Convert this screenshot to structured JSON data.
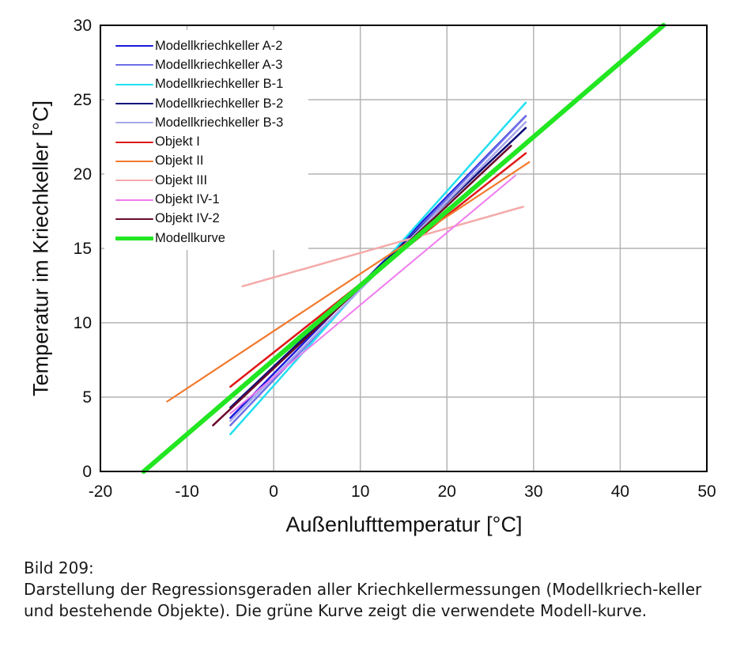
{
  "chart_data": {
    "type": "line",
    "title": "",
    "xlabel": "Außenlufttemperatur [°C]",
    "ylabel": "Temperatur im Kriechkeller [°C]",
    "xlim": [
      -20,
      50
    ],
    "ylim": [
      0,
      30
    ],
    "xticks": [
      -20,
      -10,
      0,
      10,
      20,
      30,
      40,
      50
    ],
    "yticks": [
      0,
      5,
      10,
      15,
      20,
      25,
      30
    ],
    "grid": true,
    "legend_position": "upper left",
    "series": [
      {
        "name": "Modellkriechkeller A-2",
        "color": "#1a1adc",
        "width": 2.5,
        "x": [
          -5,
          29.1
        ],
        "y": [
          3.6,
          23.9
        ]
      },
      {
        "name": "Modellkriechkeller A-3",
        "color": "#6f6fe6",
        "width": 2.5,
        "x": [
          -5,
          29.1
        ],
        "y": [
          3.1,
          23.9
        ]
      },
      {
        "name": "Modellkriechkeller B-1",
        "color": "#22e0f0",
        "width": 2.5,
        "x": [
          -5,
          29.1
        ],
        "y": [
          2.5,
          24.8
        ]
      },
      {
        "name": "Modellkriechkeller B-2",
        "color": "#0c0c7a",
        "width": 2.5,
        "x": [
          -5,
          29.1
        ],
        "y": [
          4.3,
          23.1
        ]
      },
      {
        "name": "Modellkriechkeller B-3",
        "color": "#a8a8ee",
        "width": 2.5,
        "x": [
          -5,
          29.1
        ],
        "y": [
          3.4,
          23.5
        ]
      },
      {
        "name": "Objekt I",
        "color": "#e01818",
        "width": 2.5,
        "x": [
          -5,
          29.1
        ],
        "y": [
          5.7,
          21.4
        ]
      },
      {
        "name": "Objekt II",
        "color": "#f37a2e",
        "width": 2.2,
        "x": [
          -12.3,
          29.5
        ],
        "y": [
          4.7,
          20.8
        ]
      },
      {
        "name": "Objekt III",
        "color": "#f4aaaa",
        "width": 2.5,
        "x": [
          -3.6,
          28.8
        ],
        "y": [
          12.45,
          17.8
        ]
      },
      {
        "name": "Objekt IV-1",
        "color": "#ee7cee",
        "width": 2.0,
        "x": [
          -5,
          27.9
        ],
        "y": [
          3.9,
          19.9
        ]
      },
      {
        "name": "Objekt IV-2",
        "color": "#6a0a2a",
        "width": 2.5,
        "x": [
          -7,
          27.4
        ],
        "y": [
          3.1,
          21.9
        ]
      },
      {
        "name": "Modellkurve",
        "color": "#22e622",
        "width": 6,
        "x": [
          -15,
          45
        ],
        "y": [
          0,
          30
        ]
      }
    ]
  },
  "axes": {
    "xlabel": "Außenlufttemperatur [°C]",
    "ylabel": "Temperatur im Kriechkeller [°C]"
  },
  "caption": {
    "title": "Bild 209:",
    "text": "Darstellung der Regressionsgeraden aller Kriechkellermessungen (Modellkriech-keller und bestehende Objekte). Die grüne Kurve zeigt die verwendete Modell-kurve."
  }
}
